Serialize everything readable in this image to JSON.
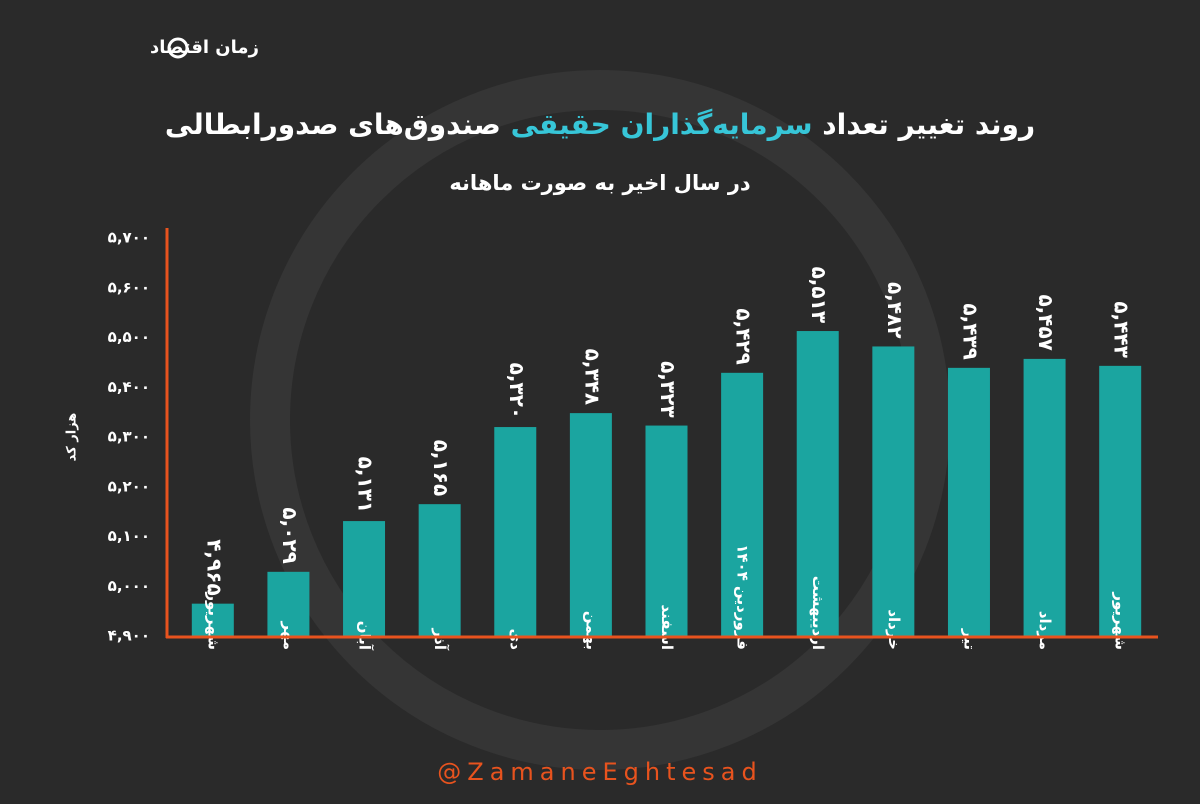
{
  "brand": "زمان اقتصاد",
  "footer": "@ZamaneEghtesad",
  "chart_data": {
    "type": "bar",
    "title": {
      "before": "روند تغییر تعداد ",
      "highlight": "سرمایه‌گذاران حقیقی",
      "after": " صندوق‌های صدورابطالی"
    },
    "subtitle": "در سال اخیر به صورت ماهانه",
    "y_label": "هزار کد",
    "categories": [
      "شهریور",
      "مهر",
      "آبان",
      "آذر",
      "دی",
      "بهمن",
      "اسفند",
      "فروردین ۱۴۰۴",
      "اردیبهشت",
      "خرداد",
      "تیر",
      "مرداد",
      "شهریور"
    ],
    "values": [
      4965,
      5029,
      5131,
      5165,
      5320,
      5348,
      5323,
      5429,
      5513,
      5482,
      5439,
      5457,
      5443
    ],
    "value_labels": [
      "۴,۹۶۵",
      "۵,۰۲۹",
      "۵,۱۳۱",
      "۵,۱۶۵",
      "۵,۳۲۰",
      "۵,۳۴۸",
      "۵,۳۲۳",
      "۵,۴۲۹",
      "۵,۵۱۳",
      "۵,۴۸۲",
      "۵,۴۳۹",
      "۵,۴۵۷",
      "۵,۴۴۳"
    ],
    "color": "#1ba5a0",
    "axis_color": "#e8531e",
    "highlight_color": "#37c6d8",
    "ylim": [
      4900,
      5700
    ],
    "yticks": [
      {
        "value": 4900,
        "label": "۴,۹۰۰"
      },
      {
        "value": 5000,
        "label": "۵,۰۰۰"
      },
      {
        "value": 5100,
        "label": "۵,۱۰۰"
      },
      {
        "value": 5200,
        "label": "۵,۲۰۰"
      },
      {
        "value": 5300,
        "label": "۵,۳۰۰"
      },
      {
        "value": 5400,
        "label": "۵,۴۰۰"
      },
      {
        "value": 5500,
        "label": "۵,۵۰۰"
      },
      {
        "value": 5600,
        "label": "۵,۶۰۰"
      },
      {
        "value": 5700,
        "label": "۵,۷۰۰"
      }
    ],
    "grid": false
  }
}
